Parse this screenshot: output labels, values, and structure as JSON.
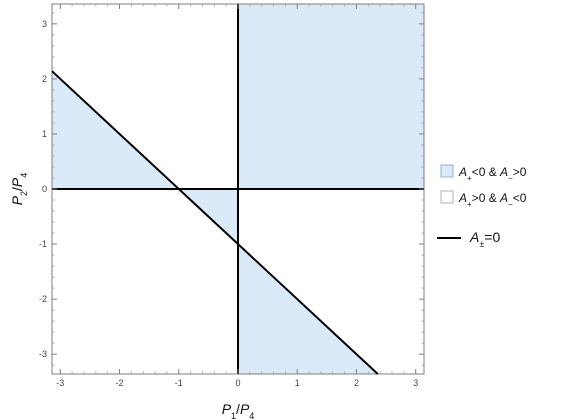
{
  "chart_data": {
    "type": "area",
    "xlabel": {
      "base": "P",
      "num_sub": "1",
      "sep": "/",
      "den_base": "P",
      "den_sub": "4"
    },
    "ylabel": {
      "base": "P",
      "num_sub": "2",
      "sep": "/",
      "den_base": "P",
      "den_sub": "4"
    },
    "xlim": [
      -3.14,
      3.14
    ],
    "ylim": [
      -3.36,
      3.36
    ],
    "x_ticks": [
      -3,
      -2,
      -1,
      0,
      1,
      2,
      3
    ],
    "y_ticks": [
      -3,
      -2,
      -1,
      0,
      1,
      2,
      3
    ],
    "x_tick_labels": [
      "-3",
      "-2",
      "-1",
      "0",
      "1",
      "2",
      "3"
    ],
    "y_tick_labels": [
      "-3",
      "-2",
      "-1",
      "0",
      "1",
      "2",
      "3"
    ],
    "regions": [
      {
        "name": "A+<0 & A->0",
        "fill": "#dbeaf9",
        "polygon": [
          [
            0,
            0
          ],
          [
            3.14,
            0
          ],
          [
            3.14,
            3.36
          ],
          [
            0,
            3.36
          ]
        ]
      },
      {
        "name": "A+<0 & A->0",
        "fill": "#dbeaf9",
        "polygon": [
          [
            -3.14,
            0
          ],
          [
            -1,
            0
          ],
          [
            -3.14,
            2.14
          ]
        ]
      },
      {
        "name": "A+<0 & A->0",
        "fill": "#dbeaf9",
        "polygon": [
          [
            -1,
            0
          ],
          [
            0,
            0
          ],
          [
            0,
            -1
          ]
        ]
      },
      {
        "name": "A+<0 & A->0",
        "fill": "#dbeaf9",
        "polygon": [
          [
            0,
            -1
          ],
          [
            2.36,
            -3.36
          ],
          [
            0,
            -3.36
          ]
        ]
      }
    ],
    "lines": [
      {
        "name": "A±=0",
        "kind": "diagonal",
        "points": [
          [
            -3.14,
            2.14
          ],
          [
            2.36,
            -3.36
          ]
        ]
      },
      {
        "name": "A±=0",
        "kind": "vertical",
        "points": [
          [
            0,
            -3.36
          ],
          [
            0,
            3.36
          ]
        ]
      },
      {
        "name": "A±=0",
        "kind": "horizontal",
        "points": [
          [
            -3.14,
            0
          ],
          [
            3.14,
            0
          ]
        ]
      }
    ],
    "legend": {
      "position": "right",
      "entries": [
        {
          "swatch": "box",
          "fill": "#dbeaf9",
          "stroke": "#8fb3d6",
          "parts": [
            [
              "A",
              ""
            ],
            [
              "+",
              "sub"
            ],
            [
              "<0 & ",
              ""
            ],
            [
              "A",
              ""
            ],
            [
              "−",
              "sub"
            ],
            [
              ">0",
              ""
            ]
          ]
        },
        {
          "swatch": "box",
          "fill": "#ffffff",
          "stroke": "#b0b0b0",
          "parts": [
            [
              "A",
              ""
            ],
            [
              "+",
              "sub"
            ],
            [
              ">0 & ",
              ""
            ],
            [
              "A",
              ""
            ],
            [
              "−",
              "sub"
            ],
            [
              "<0",
              ""
            ]
          ]
        },
        {
          "swatch": "line",
          "stroke": "#000000",
          "parts": [
            [
              "A",
              ""
            ],
            [
              "±",
              "sub"
            ],
            [
              "=0",
              ""
            ]
          ]
        }
      ]
    },
    "colors": {
      "fill": "#dbeaf9",
      "line": "#000000",
      "frame": "#7f7f7f"
    }
  }
}
